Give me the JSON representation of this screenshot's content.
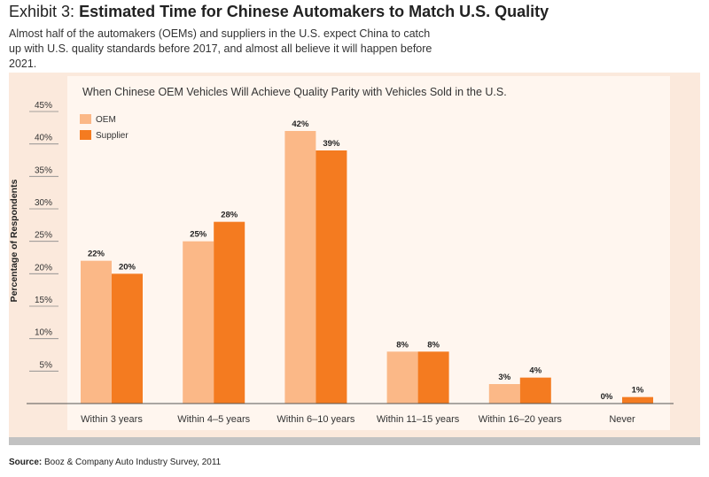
{
  "header": {
    "exhibit_number": "Exhibit 3:",
    "exhibit_title": "Estimated Time for Chinese Automakers to Match U.S. Quality",
    "subtitle": "Almost half of the automakers (OEMs) and suppliers in the U.S. expect China to catch up with U.S. quality standards before 2017, and almost all believe it will happen before 2021."
  },
  "source": {
    "label": "Source:",
    "text": "Booz & Company Auto Industry Survey, 2011"
  },
  "colors": {
    "oem": "#fbb887",
    "supplier": "#f47b20"
  },
  "chart_data": {
    "type": "bar",
    "title": "When Chinese OEM Vehicles Will Achieve Quality Parity with Vehicles Sold in the U.S.",
    "xlabel": "",
    "ylabel": "Percentage of Respondents",
    "ylim": [
      0,
      45
    ],
    "yticks": [
      5,
      10,
      15,
      20,
      25,
      30,
      35,
      40,
      45
    ],
    "ytick_labels": [
      "5%",
      "10%",
      "15%",
      "20%",
      "25%",
      "30%",
      "35%",
      "40%",
      "45%"
    ],
    "categories": [
      "Within 3 years",
      "Within 4–5 years",
      "Within 6–10 years",
      "Within 11–15 years",
      "Within 16–20 years",
      "Never"
    ],
    "series": [
      {
        "name": "OEM",
        "values": [
          22,
          25,
          42,
          8,
          3,
          0
        ],
        "labels": [
          "22%",
          "25%",
          "42%",
          "8%",
          "3%",
          "0%"
        ]
      },
      {
        "name": "Supplier",
        "values": [
          20,
          28,
          39,
          8,
          4,
          1
        ],
        "labels": [
          "20%",
          "28%",
          "39%",
          "8%",
          "4%",
          "1%"
        ]
      }
    ],
    "legend_position": "top-left",
    "grid": false
  }
}
